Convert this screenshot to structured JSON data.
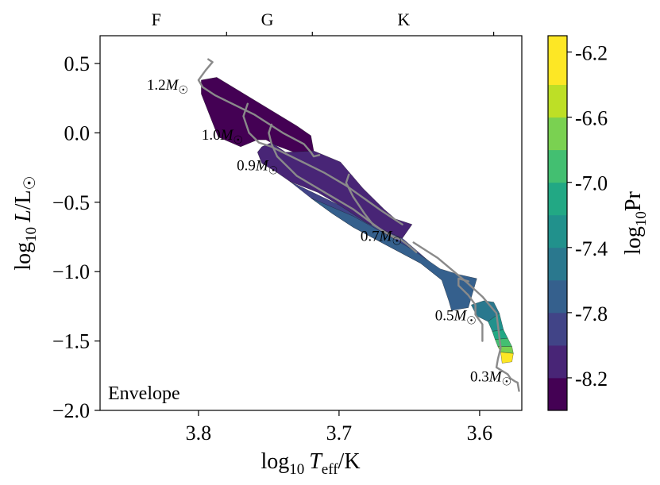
{
  "chart_data": {
    "type": "heatmap",
    "title": "",
    "panel_label": "Envelope",
    "xlabel": {
      "main": "log",
      "sub": "10",
      "var": "T",
      "var_sub": "eff",
      "unit": "/K"
    },
    "ylabel": {
      "main": "log",
      "sub": "10",
      "var": "L",
      "unit": "/L",
      "sun": "☉"
    },
    "colorbar_label": {
      "main": "log",
      "sub": "10",
      "rest": "Pr"
    },
    "xlim": [
      3.87,
      3.57
    ],
    "ylim": [
      -2.0,
      0.7
    ],
    "x_ticks": [
      {
        "value": 3.8,
        "label": "3.8"
      },
      {
        "value": 3.7,
        "label": "3.7"
      },
      {
        "value": 3.6,
        "label": "3.6"
      }
    ],
    "y_ticks": [
      {
        "value": 0.5,
        "label": "0.5"
      },
      {
        "value": 0.0,
        "label": "0.0"
      },
      {
        "value": -0.5,
        "label": "−0.5"
      },
      {
        "value": -1.0,
        "label": "−1.0"
      },
      {
        "value": -1.5,
        "label": "−1.5"
      },
      {
        "value": -2.0,
        "label": "−2.0"
      }
    ],
    "spectral_classes": [
      {
        "label": "F",
        "center": 3.83
      },
      {
        "label": "G",
        "center": 3.751
      },
      {
        "label": "K",
        "center": 3.654
      }
    ],
    "spectral_boundaries": [
      3.78,
      3.719,
      3.59
    ],
    "colorbar": {
      "min": -8.4,
      "max": -6.1,
      "levels": [
        -8.4,
        -8.2,
        -8.0,
        -7.8,
        -7.6,
        -7.4,
        -7.2,
        -7.0,
        -6.8,
        -6.6,
        -6.4,
        -6.2,
        -6.1
      ],
      "colors": [
        "#440154",
        "#482576",
        "#414487",
        "#35608d",
        "#2a788e",
        "#21918c",
        "#22a884",
        "#43bf71",
        "#7ad151",
        "#bddf26",
        "#fde725",
        "#fde725"
      ],
      "ticks": [
        {
          "value": -6.2,
          "label": "-6.2"
        },
        {
          "value": -6.6,
          "label": "-6.6"
        },
        {
          "value": -7.0,
          "label": "-7.0"
        },
        {
          "value": -7.4,
          "label": "-7.4"
        },
        {
          "value": -7.8,
          "label": "-7.8"
        },
        {
          "value": -8.2,
          "label": "-8.2"
        }
      ]
    },
    "regions": [
      {
        "level": -8.3,
        "points": [
          [
            3.798,
            0.38
          ],
          [
            3.787,
            0.4
          ],
          [
            3.73,
            0.05
          ],
          [
            3.72,
            -0.02
          ],
          [
            3.718,
            -0.13
          ],
          [
            3.732,
            -0.14
          ],
          [
            3.745,
            -0.09
          ],
          [
            3.752,
            -0.05
          ],
          [
            3.758,
            -0.05
          ],
          [
            3.77,
            -0.1
          ],
          [
            3.786,
            -0.03
          ],
          [
            3.798,
            0.28
          ]
        ]
      },
      {
        "level": -8.1,
        "points": [
          [
            3.738,
            -0.14
          ],
          [
            3.718,
            -0.13
          ],
          [
            3.699,
            -0.21
          ],
          [
            3.683,
            -0.4
          ],
          [
            3.668,
            -0.55
          ],
          [
            3.66,
            -0.62
          ],
          [
            3.648,
            -0.66
          ],
          [
            3.655,
            -0.76
          ],
          [
            3.68,
            -0.65
          ],
          [
            3.7,
            -0.52
          ],
          [
            3.715,
            -0.43
          ],
          [
            3.735,
            -0.35
          ],
          [
            3.745,
            -0.28
          ],
          [
            3.755,
            -0.22
          ],
          [
            3.758,
            -0.14
          ],
          [
            3.755,
            -0.1
          ],
          [
            3.748,
            -0.07
          ]
        ]
      },
      {
        "level": -7.9,
        "points": [
          [
            3.735,
            -0.35
          ],
          [
            3.7,
            -0.52
          ],
          [
            3.68,
            -0.65
          ],
          [
            3.655,
            -0.76
          ],
          [
            3.632,
            -0.96
          ],
          [
            3.627,
            -1.06
          ],
          [
            3.642,
            -0.94
          ],
          [
            3.668,
            -0.8
          ],
          [
            3.69,
            -0.68
          ],
          [
            3.705,
            -0.58
          ],
          [
            3.72,
            -0.47
          ]
        ]
      },
      {
        "level": -7.7,
        "points": [
          [
            3.72,
            -0.47
          ],
          [
            3.705,
            -0.58
          ],
          [
            3.69,
            -0.68
          ],
          [
            3.668,
            -0.8
          ],
          [
            3.642,
            -0.94
          ],
          [
            3.627,
            -1.06
          ],
          [
            3.622,
            -1.21
          ],
          [
            3.62,
            -1.28
          ],
          [
            3.608,
            -1.26
          ],
          [
            3.602,
            -1.05
          ],
          [
            3.615,
            -1.02
          ],
          [
            3.628,
            -0.98
          ],
          [
            3.648,
            -0.84
          ],
          [
            3.665,
            -0.74
          ],
          [
            3.69,
            -0.6
          ]
        ]
      },
      {
        "level": -7.5,
        "points": [
          [
            3.606,
            -1.24
          ],
          [
            3.597,
            -1.21
          ],
          [
            3.59,
            -1.22
          ],
          [
            3.586,
            -1.3
          ],
          [
            3.594,
            -1.36
          ],
          [
            3.602,
            -1.32
          ]
        ]
      },
      {
        "level": -7.3,
        "points": [
          [
            3.594,
            -1.36
          ],
          [
            3.586,
            -1.3
          ],
          [
            3.583,
            -1.42
          ],
          [
            3.591,
            -1.43
          ]
        ]
      },
      {
        "level": -7.1,
        "points": [
          [
            3.591,
            -1.43
          ],
          [
            3.583,
            -1.42
          ],
          [
            3.58,
            -1.48
          ],
          [
            3.589,
            -1.49
          ]
        ]
      },
      {
        "level": -6.9,
        "points": [
          [
            3.589,
            -1.49
          ],
          [
            3.58,
            -1.48
          ],
          [
            3.577,
            -1.54
          ],
          [
            3.587,
            -1.54
          ]
        ]
      },
      {
        "level": -6.7,
        "points": [
          [
            3.587,
            -1.54
          ],
          [
            3.577,
            -1.54
          ],
          [
            3.576,
            -1.59
          ],
          [
            3.585,
            -1.58
          ]
        ]
      },
      {
        "level": -6.4,
        "points": [
          [
            3.585,
            -1.58
          ],
          [
            3.576,
            -1.59
          ],
          [
            3.577,
            -1.65
          ],
          [
            3.584,
            -1.66
          ]
        ]
      }
    ],
    "tracks": [
      {
        "mass": "1.2",
        "label_at": [
          3.822,
          0.31
        ],
        "points": [
          [
            3.793,
            0.53
          ],
          [
            3.79,
            0.51
          ],
          [
            3.795,
            0.45
          ],
          [
            3.8,
            0.38
          ],
          [
            3.797,
            0.33
          ],
          [
            3.788,
            0.27
          ],
          [
            3.76,
            0.13
          ],
          [
            3.74,
            0.0
          ],
          [
            3.725,
            -0.08
          ],
          [
            3.72,
            -0.14
          ],
          [
            3.718,
            -0.17
          ],
          [
            3.714,
            -0.16
          ]
        ]
      },
      {
        "mass": "1.0",
        "label_at": [
          3.783,
          -0.05
        ],
        "points": [
          [
            3.765,
            0.21
          ],
          [
            3.768,
            0.12
          ],
          [
            3.764,
            0.0
          ],
          [
            3.757,
            -0.07
          ],
          [
            3.748,
            -0.1
          ],
          [
            3.72,
            -0.24
          ],
          [
            3.71,
            -0.29
          ],
          [
            3.695,
            -0.38
          ],
          [
            3.67,
            -0.56
          ],
          [
            3.655,
            -0.66
          ]
        ]
      },
      {
        "mass": "0.9",
        "label_at": [
          3.758,
          -0.27
        ],
        "points": [
          [
            3.748,
            0.06
          ],
          [
            3.75,
            0.0
          ],
          [
            3.748,
            -0.08
          ],
          [
            3.744,
            -0.17
          ],
          [
            3.735,
            -0.26
          ],
          [
            3.73,
            -0.31
          ],
          [
            3.72,
            -0.37
          ],
          [
            3.705,
            -0.46
          ],
          [
            3.69,
            -0.55
          ],
          [
            3.67,
            -0.7
          ],
          [
            3.66,
            -0.76
          ]
        ]
      },
      {
        "mass": "0.7",
        "label_at": [
          3.67,
          -0.78
        ],
        "points": [
          [
            3.693,
            -0.3
          ],
          [
            3.695,
            -0.36
          ],
          [
            3.69,
            -0.46
          ],
          [
            3.682,
            -0.58
          ],
          [
            3.676,
            -0.66
          ],
          [
            3.665,
            -0.73
          ],
          [
            3.656,
            -0.77
          ],
          [
            3.652,
            -0.8
          ],
          [
            3.645,
            -0.86
          ]
        ]
      },
      {
        "mass": "0.5",
        "label_at": [
          3.617,
          -1.35
        ],
        "points": [
          [
            3.608,
            -1.07
          ],
          [
            3.615,
            -1.05
          ],
          [
            3.615,
            -1.1
          ],
          [
            3.608,
            -1.17
          ],
          [
            3.603,
            -1.24
          ],
          [
            3.603,
            -1.31
          ],
          [
            3.598,
            -1.38
          ],
          [
            3.598,
            -1.43
          ],
          [
            3.598,
            -1.5
          ]
        ]
      },
      {
        "mass": "0.3",
        "label_at": [
          3.592,
          -1.79
        ],
        "points": [
          [
            3.647,
            -0.79
          ],
          [
            3.63,
            -0.9
          ],
          [
            3.61,
            -1.07
          ],
          [
            3.598,
            -1.18
          ],
          [
            3.588,
            -1.3
          ],
          [
            3.585,
            -1.55
          ],
          [
            3.587,
            -1.63
          ],
          [
            3.588,
            -1.69
          ],
          [
            3.58,
            -1.74
          ],
          [
            3.578,
            -1.77
          ],
          [
            3.575,
            -1.79
          ],
          [
            3.573,
            -1.8
          ],
          [
            3.572,
            -1.86
          ]
        ]
      }
    ]
  }
}
